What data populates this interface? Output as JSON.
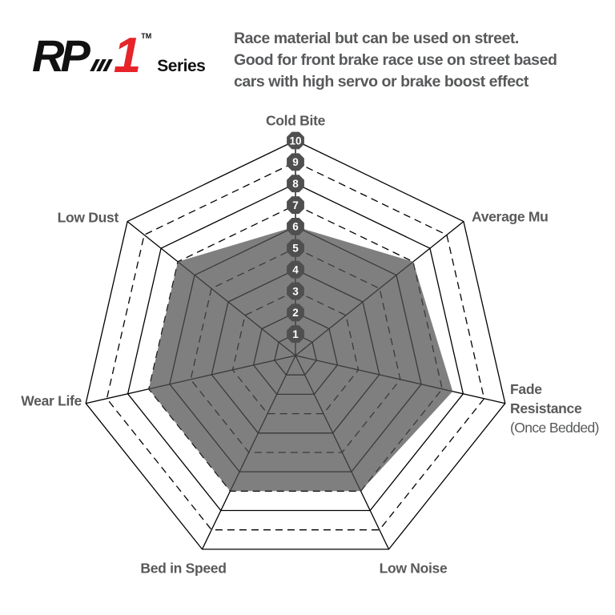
{
  "header": {
    "logo": {
      "brand_main": "RP",
      "brand_number": "1",
      "trademark": "TM",
      "series_label": "Series",
      "accent_color": "#e62429"
    },
    "description_lines": [
      "Race material but can be used on street.",
      "Good for front brake race use on street based",
      "cars with high servo or brake boost effect"
    ]
  },
  "chart_data": {
    "type": "radar",
    "title": "RP-1 Series brake pad performance ratings",
    "scale": {
      "min": 1,
      "max": 10,
      "ticks": [
        1,
        2,
        3,
        4,
        5,
        6,
        7,
        8,
        9,
        10
      ]
    },
    "axes": [
      {
        "label": "Cold Bite",
        "value": 6
      },
      {
        "label": "Average Mu",
        "value": 7
      },
      {
        "label": "Fade Resistance",
        "sublabel": "(Once Bedded)",
        "value": 7.5
      },
      {
        "label": "Low Noise",
        "value": 7
      },
      {
        "label": "Bed in Speed",
        "value": 7
      },
      {
        "label": "Wear Life",
        "value": 7
      },
      {
        "label": "Low Dust",
        "value": 7
      }
    ],
    "grid": {
      "shape": "heptagon",
      "solid_rings": [
        1,
        2,
        4,
        6,
        8,
        10
      ],
      "dashed_rings": [
        3,
        5,
        7,
        9
      ],
      "legend": "none"
    },
    "colors": {
      "fill": "rgba(80,80,80,0.73)",
      "line": "#000000",
      "badge": "#4f4f4f",
      "badge_text": "#ffffff",
      "label": "#58595b"
    }
  }
}
